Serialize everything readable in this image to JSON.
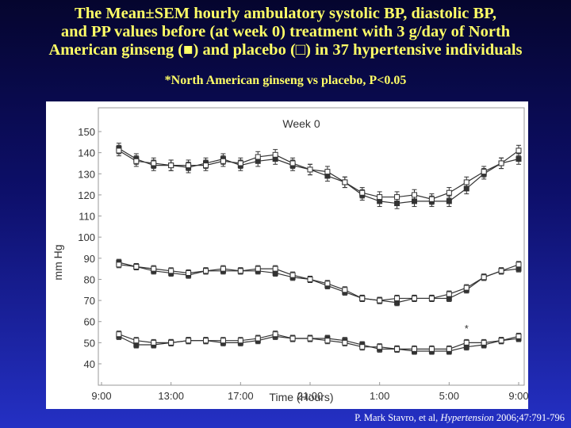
{
  "slide": {
    "title_lines": [
      "The Mean±SEM hourly ambulatory systolic BP, diastolic BP,",
      "and PP values before (at week 0) treatment with 3 g/day of North",
      "American ginseng (■) and placebo (□) in 37 hypertensive individuals"
    ],
    "subtitle": "*North American ginseng vs placebo, P<0.05",
    "citation": {
      "authors": "P. Mark Stavro, et al, ",
      "journal": "Hypertension",
      "ref": " 2006;47:791-796"
    }
  },
  "colors": {
    "background_top": "#05052e",
    "background_bottom": "#2430c4",
    "title_text": "#ffff66",
    "plot_frame": "#999999",
    "series_line": "#333333"
  },
  "chart_data": {
    "type": "line",
    "title": "Week 0",
    "xlabel": "Time (Hours)",
    "ylabel": "mm Hg",
    "ylim": [
      40,
      150
    ],
    "yticks": [
      40,
      50,
      60,
      70,
      80,
      90,
      100,
      110,
      120,
      130,
      140,
      150
    ],
    "xlim": [
      9,
      33
    ],
    "xticks": [
      {
        "value": 9,
        "label": "9:00"
      },
      {
        "value": 13,
        "label": "13:00"
      },
      {
        "value": 17,
        "label": "17:00"
      },
      {
        "value": 21,
        "label": "21:00"
      },
      {
        "value": 25,
        "label": "1:00"
      },
      {
        "value": 29,
        "label": "5:00"
      },
      {
        "value": 33,
        "label": "9:00"
      }
    ],
    "x": [
      10,
      11,
      12,
      13,
      14,
      15,
      16,
      17,
      18,
      19,
      20,
      21,
      22,
      23,
      24,
      25,
      26,
      27,
      28,
      29,
      30,
      31,
      32,
      33
    ],
    "legend": "none",
    "grid": false,
    "groups": [
      {
        "measure": "systolic BP",
        "series": [
          {
            "marker": "filled-square",
            "values": [
              142,
              137,
              134,
              134,
              133,
              135,
              137,
              134,
              136,
              137,
              134,
              132,
              129,
              126,
              120,
              117,
              116,
              117,
              117,
              117,
              123,
              130,
              135,
              137
            ],
            "sem": 2.5
          },
          {
            "marker": "open-square",
            "values": [
              141,
              136,
              135,
              134,
              134,
              134,
              136,
              135,
              138,
              139,
              135,
              132,
              131,
              126,
              121,
              119,
              119,
              120,
              118,
              121,
              126,
              131,
              135,
              141
            ],
            "sem": 2.5
          }
        ]
      },
      {
        "measure": "diastolic BP",
        "series": [
          {
            "marker": "filled-square",
            "values": [
              88,
              86,
              84,
              83,
              82,
              84,
              84,
              84,
              84,
              83,
              81,
              80,
              77,
              74,
              71,
              70,
              69,
              71,
              71,
              71,
              75,
              81,
              84,
              85
            ],
            "sem": 1.5
          },
          {
            "marker": "open-square",
            "values": [
              87,
              86,
              85,
              84,
              83,
              84,
              85,
              84,
              85,
              85,
              82,
              80,
              78,
              75,
              71,
              70,
              71,
              71,
              71,
              73,
              76,
              81,
              84,
              87
            ],
            "sem": 1.5
          }
        ]
      },
      {
        "measure": "PP",
        "series": [
          {
            "marker": "filled-square",
            "values": [
              53,
              49,
              49,
              50,
              51,
              51,
              50,
              50,
              51,
              53,
              52,
              52,
              52,
              51,
              49,
              47,
              47,
              46,
              46,
              46,
              48,
              49,
              51,
              52
            ],
            "sem": 1.5
          },
          {
            "marker": "open-square",
            "values": [
              54,
              51,
              50,
              50,
              51,
              51,
              51,
              51,
              52,
              54,
              52,
              52,
              51,
              50,
              48,
              48,
              47,
              47,
              47,
              47,
              50,
              50,
              51,
              53
            ],
            "sem": 1.5
          }
        ]
      }
    ],
    "annotations": [
      {
        "text": "*",
        "x": 30,
        "y": 55
      }
    ]
  }
}
